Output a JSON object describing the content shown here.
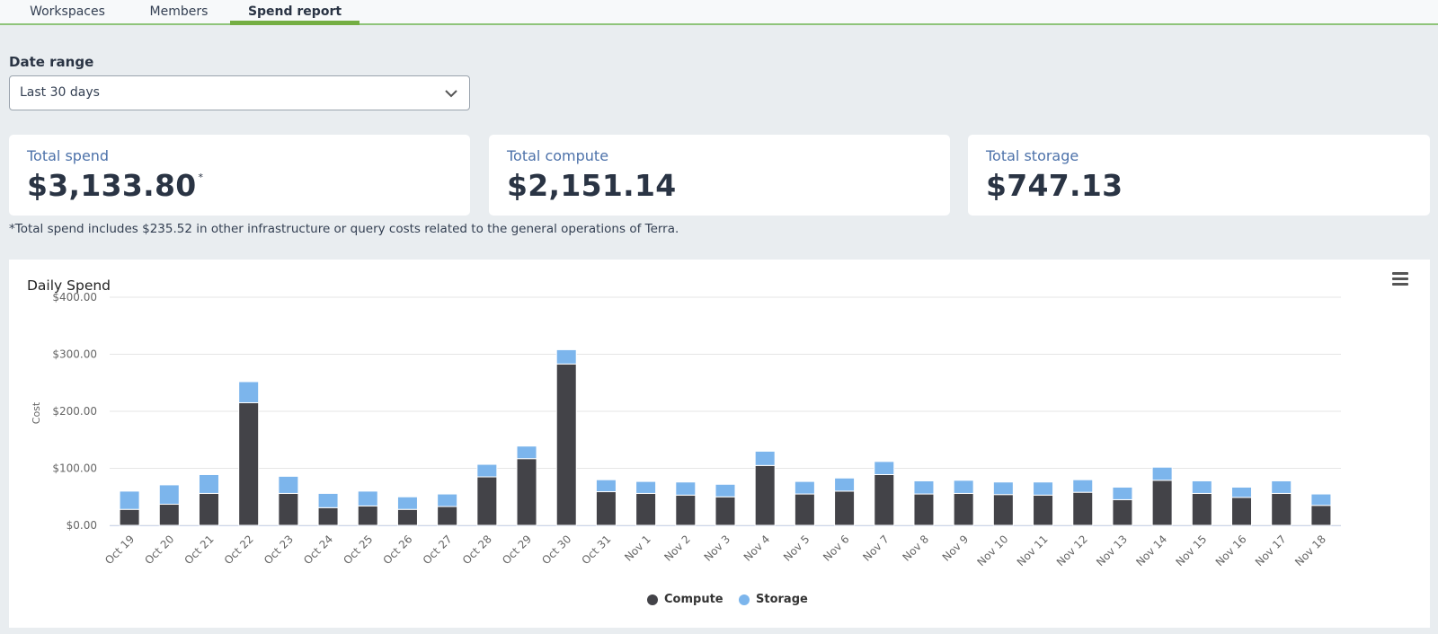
{
  "tabs": [
    {
      "label": "Workspaces",
      "active": false
    },
    {
      "label": "Members",
      "active": false
    },
    {
      "label": "Spend report",
      "active": true
    }
  ],
  "date_range": {
    "label": "Date range",
    "selected": "Last 30 days"
  },
  "summary": {
    "total_spend": {
      "label": "Total spend",
      "value": "$3,133.80",
      "marker": "*"
    },
    "total_compute": {
      "label": "Total compute",
      "value": "$2,151.14"
    },
    "total_storage": {
      "label": "Total storage",
      "value": "$747.13"
    }
  },
  "footnote": "*Total spend includes $235.52 in other infrastructure or query costs related to the general operations of Terra.",
  "colors": {
    "compute": "#434348",
    "storage": "#7cb5ec",
    "accent": "#74ae43"
  },
  "chart_data": {
    "type": "bar",
    "stacked": true,
    "title": "Daily Spend",
    "ylabel": "Cost",
    "ylim": [
      0,
      400
    ],
    "yticks": [
      "$0.00",
      "$100.00",
      "$200.00",
      "$300.00",
      "$400.00"
    ],
    "legend_position": "bottom-center",
    "categories": [
      "Oct 19",
      "Oct 20",
      "Oct 21",
      "Oct 22",
      "Oct 23",
      "Oct 24",
      "Oct 25",
      "Oct 26",
      "Oct 27",
      "Oct 28",
      "Oct 29",
      "Oct 30",
      "Oct 31",
      "Nov 1",
      "Nov 2",
      "Nov 3",
      "Nov 4",
      "Nov 5",
      "Nov 6",
      "Nov 7",
      "Nov 8",
      "Nov 9",
      "Nov 10",
      "Nov 11",
      "Nov 12",
      "Nov 13",
      "Nov 14",
      "Nov 15",
      "Nov 16",
      "Nov 17",
      "Nov 18"
    ],
    "series": [
      {
        "name": "Compute",
        "values": [
          28,
          37,
          56,
          215,
          56,
          31,
          34,
          28,
          33,
          85,
          117,
          283,
          59,
          56,
          53,
          50,
          105,
          55,
          60,
          89,
          55,
          56,
          54,
          53,
          58,
          45,
          79,
          56,
          49,
          56,
          35
        ]
      },
      {
        "name": "Storage",
        "values": [
          32,
          34,
          33,
          37,
          30,
          25,
          26,
          22,
          22,
          22,
          22,
          25,
          21,
          21,
          23,
          22,
          25,
          22,
          23,
          23,
          23,
          23,
          22,
          23,
          22,
          22,
          23,
          22,
          18,
          22,
          20
        ]
      }
    ]
  }
}
